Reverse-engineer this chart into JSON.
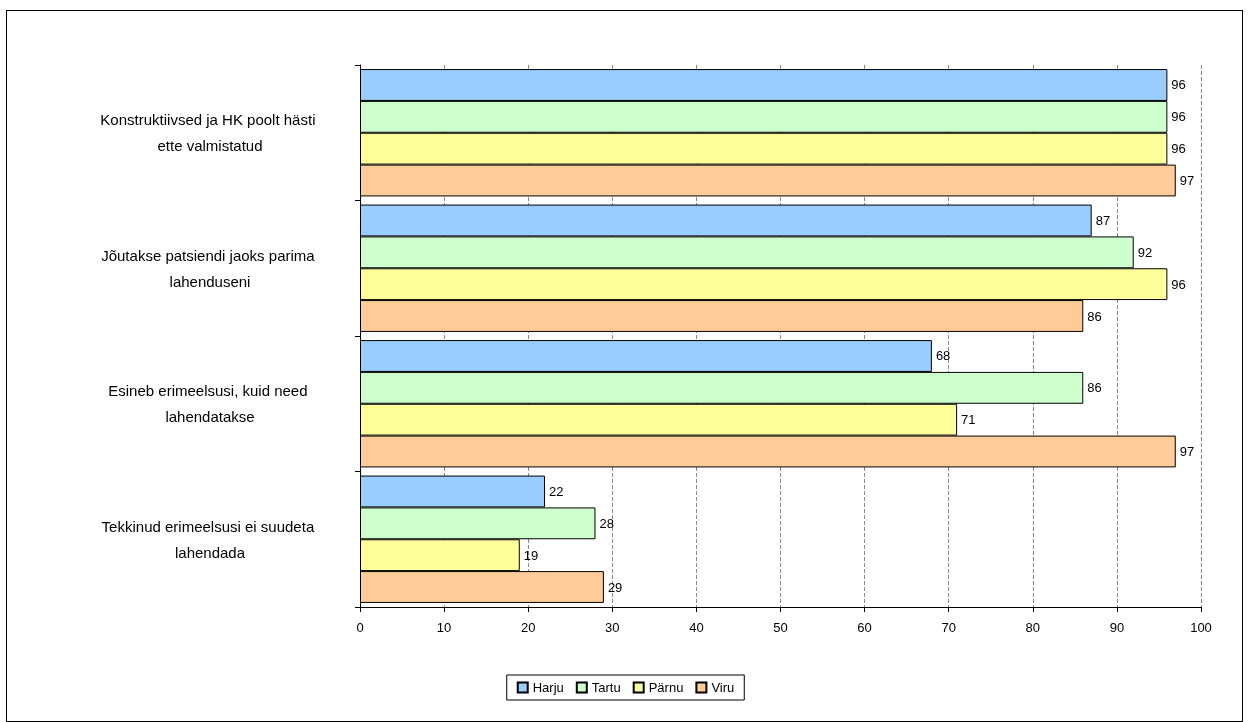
{
  "chart_data": {
    "type": "bar",
    "orientation": "horizontal",
    "categories": [
      "Konstruktiivsed ja HK poolt hästi ette valmistatud",
      "Jõutakse patsiendi jaoks parima lahenduseni",
      "Esineb erimeelsusi, kuid need lahendatakse",
      "Tekkinud erimeelsusi ei suudeta lahendada"
    ],
    "series": [
      {
        "name": "Harju",
        "color": "#99ccff",
        "values": [
          96,
          87,
          68,
          22
        ]
      },
      {
        "name": "Tartu",
        "color": "#ccffcc",
        "values": [
          96,
          92,
          86,
          28
        ]
      },
      {
        "name": "Pärnu",
        "color": "#ffff99",
        "values": [
          96,
          96,
          71,
          19
        ]
      },
      {
        "name": "Viru",
        "color": "#ffcc99",
        "values": [
          97,
          86,
          97,
          29
        ]
      }
    ],
    "xlim": [
      0,
      100
    ],
    "xticks": [
      0,
      10,
      20,
      30,
      40,
      50,
      60,
      70,
      80,
      90,
      100
    ],
    "grid": "x",
    "legend": "bottom",
    "data_labels": true
  }
}
